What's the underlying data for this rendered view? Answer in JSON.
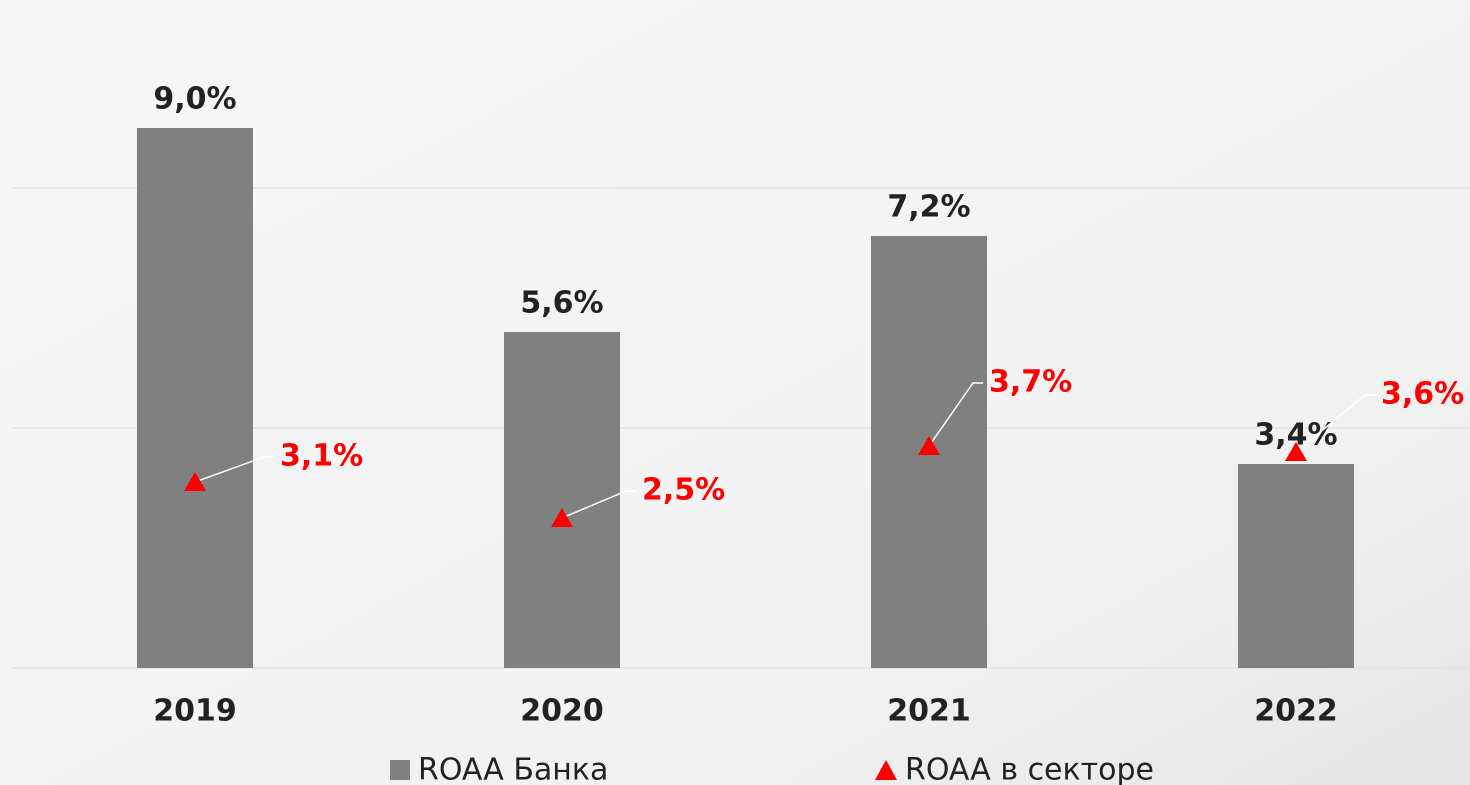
{
  "chart_data": {
    "type": "bar",
    "categories": [
      "2019",
      "2020",
      "2021",
      "2022"
    ],
    "series": [
      {
        "name": "ROAA Банка",
        "color": "#808080",
        "values": [
          9.0,
          5.6,
          7.2,
          3.4
        ],
        "value_labels": [
          "9,0%",
          "5,6%",
          "7,2%",
          "3,4%"
        ]
      },
      {
        "name": "ROAA в секторе",
        "color": "#ff0000",
        "marker": "triangle",
        "values": [
          3.1,
          2.5,
          3.7,
          3.6
        ],
        "value_labels": [
          "3,1%",
          "2,5%",
          "3,7%",
          "3,6%"
        ]
      }
    ],
    "ylim": [
      0,
      10
    ],
    "yticks": [
      0,
      4,
      8
    ],
    "grid": true
  }
}
